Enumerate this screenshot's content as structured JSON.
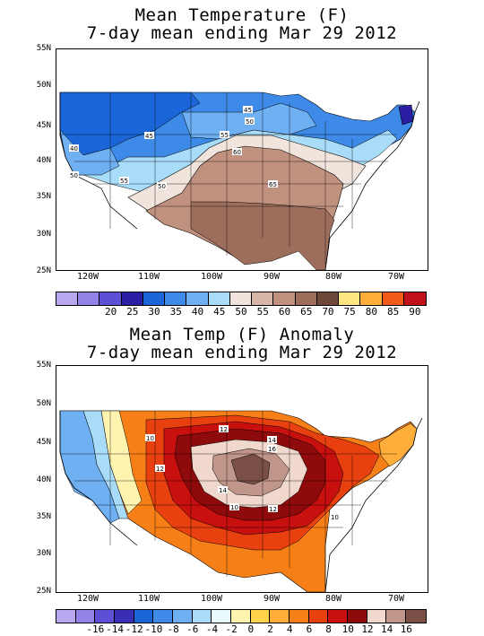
{
  "top": {
    "title_line1": "Mean Temperature (F)",
    "title_line2": "7-day mean ending Mar 29 2012",
    "yticks": [
      "55N",
      "50N",
      "45N",
      "40N",
      "35N",
      "30N",
      "25N"
    ],
    "xticks": [
      "120W",
      "110W",
      "100W",
      "90W",
      "80W",
      "70W"
    ],
    "colorbar": {
      "colors": [
        "#b9a8f0",
        "#9382e8",
        "#5d4fd6",
        "#2a1fa4",
        "#1a66d8",
        "#3d8ae8",
        "#6fb0f2",
        "#a8dcf8",
        "#f0e4dc",
        "#d9b5a8",
        "#c1917f",
        "#9e6e5c",
        "#70483a",
        "#ffe680",
        "#ffae3b",
        "#f25b18",
        "#c0101a"
      ],
      "labels": [
        "20",
        "25",
        "30",
        "35",
        "40",
        "45",
        "50",
        "55",
        "60",
        "65",
        "70",
        "75",
        "80",
        "85",
        "90"
      ]
    },
    "contour_labels": [
      "40",
      "50",
      "45",
      "55",
      "50",
      "45",
      "50",
      "55",
      "60",
      "65"
    ]
  },
  "bottom": {
    "title_line1": "Mean Temp (F) Anomaly",
    "title_line2": "7-day mean ending Mar 29 2012",
    "yticks": [
      "55N",
      "50N",
      "45N",
      "40N",
      "35N",
      "30N",
      "25N"
    ],
    "xticks": [
      "120W",
      "110W",
      "100W",
      "90W",
      "80W",
      "70W"
    ],
    "colorbar": {
      "colors": [
        "#b9a8f0",
        "#9382e8",
        "#5d4fd6",
        "#3a2fb4",
        "#1a66d8",
        "#3d8ae8",
        "#6fb0f2",
        "#a8dcf8",
        "#e8fafc",
        "#fff3b0",
        "#ffd34a",
        "#ffae3b",
        "#f77f18",
        "#e8400e",
        "#c8100e",
        "#8f0a0a",
        "#f0d8cc",
        "#c0958a",
        "#7a5046"
      ],
      "labels": [
        "-16",
        "-14",
        "-12",
        "-10",
        "-8",
        "-6",
        "-4",
        "-2",
        "0",
        "2",
        "4",
        "6",
        "8",
        "10",
        "12",
        "14",
        "16"
      ]
    },
    "contour_labels": [
      "10",
      "12",
      "12",
      "14",
      "16",
      "14",
      "12",
      "10",
      "10"
    ]
  }
}
